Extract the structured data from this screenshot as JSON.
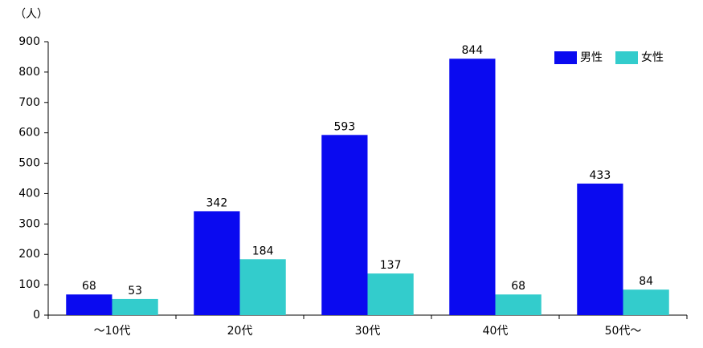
{
  "chart_data": {
    "type": "bar",
    "unit_label": "（人）",
    "categories": [
      "～10代",
      "20代",
      "30代",
      "40代",
      "50代～"
    ],
    "series": [
      {
        "name": "男性",
        "color": "#0a0af0",
        "values": [
          68,
          342,
          593,
          844,
          433
        ]
      },
      {
        "name": "女性",
        "color": "#33cccc",
        "values": [
          53,
          184,
          137,
          68,
          84
        ]
      }
    ],
    "ylim": [
      0,
      900
    ],
    "yticks": [
      0,
      100,
      200,
      300,
      400,
      500,
      600,
      700,
      800,
      900
    ],
    "grid": false,
    "legend": "upper right",
    "data_labels": true
  }
}
